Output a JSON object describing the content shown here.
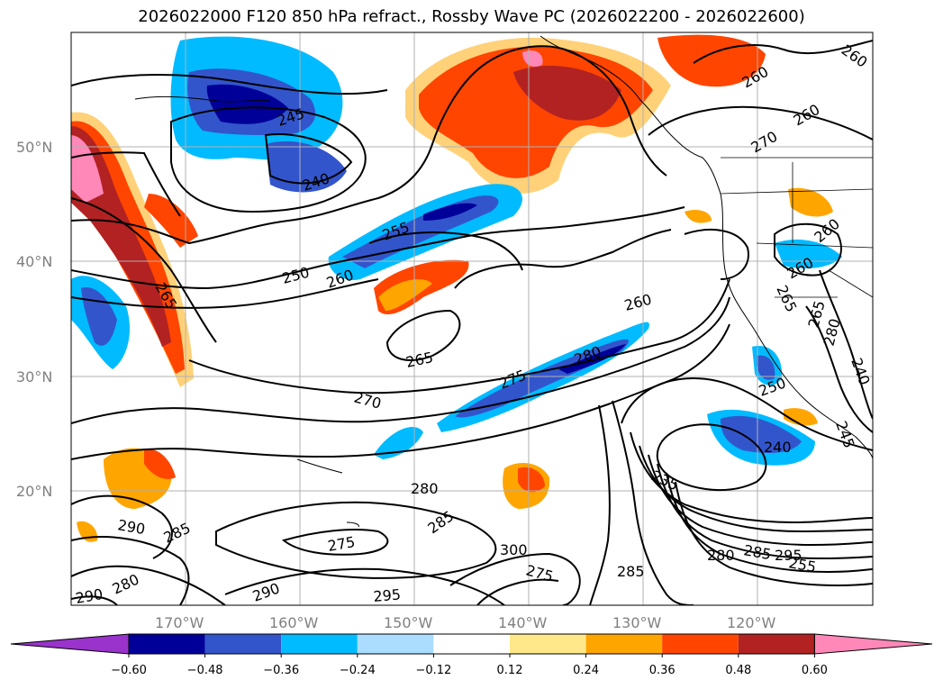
{
  "title": "2026022000 F120 850 hPa refract., Rossby Wave PC (2026022200 - 2026022600)",
  "latitude_labels": [
    "50°N",
    "40°N",
    "30°N",
    "20°N"
  ],
  "longitude_labels": [
    "170°W",
    "160°W",
    "150°W",
    "140°W",
    "130°W",
    "120°W"
  ],
  "contour_labels": [
    "265",
    "245",
    "240",
    "255",
    "260",
    "250",
    "260",
    "260",
    "260",
    "265",
    "270",
    "270",
    "265",
    "275",
    "280",
    "280",
    "260",
    "250",
    "240",
    "235",
    "245",
    "240",
    "260",
    "265",
    "260",
    "290",
    "285",
    "280",
    "290",
    "290",
    "275",
    "285",
    "295",
    "300",
    "275",
    "285",
    "280",
    "285",
    "295",
    "255",
    "280"
  ],
  "colorbar": {
    "ticks": [
      "−0.60",
      "−0.48",
      "−0.36",
      "−0.24",
      "−0.12",
      "0.12",
      "0.24",
      "0.36",
      "0.48",
      "0.60"
    ],
    "colors": [
      "#9933cc",
      "#000099",
      "#3355cc",
      "#00bbff",
      "#aaddff",
      "#ffffff",
      "#ffe88a",
      "#ffa500",
      "#ff4500",
      "#b22222",
      "#ff88b8"
    ]
  }
}
